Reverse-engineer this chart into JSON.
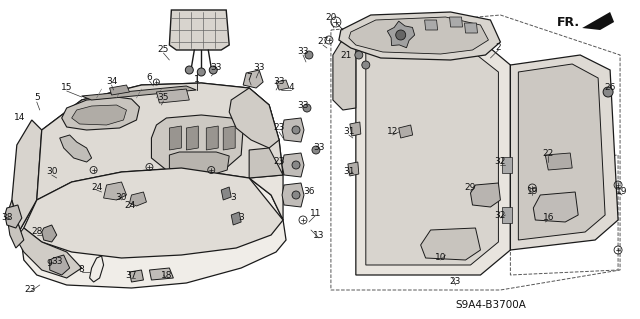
{
  "bg_color": "#f5f5f0",
  "line_color": "#1a1a1a",
  "text_color": "#111111",
  "diagram_code": "S9A4-B3700A",
  "fig_width": 6.4,
  "fig_height": 3.19,
  "dpi": 100
}
